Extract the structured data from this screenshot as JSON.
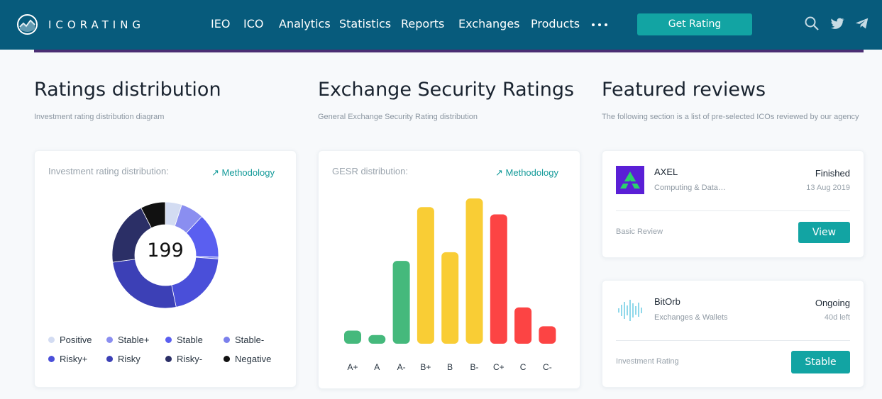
{
  "header": {
    "logo_text": "ICORATING",
    "nav": [
      "IEO",
      "ICO",
      "Analytics",
      "Statistics",
      "Reports",
      "Exchanges",
      "Products"
    ],
    "more_icon": "more-dots-icon",
    "cta_label": "Get Rating",
    "icons": [
      "search-icon",
      "twitter-icon",
      "telegram-icon"
    ],
    "colors": {
      "background": "#075b7c",
      "accent": "#12a4a3"
    }
  },
  "ratings": {
    "title": "Ratings distribution",
    "subtitle": "Investment rating distribution diagram",
    "card_label": "Investment rating distribution:",
    "methodology": "Methodology",
    "total": "199",
    "legend": [
      {
        "label": "Positive",
        "color": "#d3dcf2"
      },
      {
        "label": "Stable+",
        "color": "#8a8ef0"
      },
      {
        "label": "Stable",
        "color": "#5a5ff0"
      },
      {
        "label": "Stable-",
        "color": "#7b80ec"
      },
      {
        "label": "Risky+",
        "color": "#4a4fd9"
      },
      {
        "label": "Risky",
        "color": "#3c40b6"
      },
      {
        "label": "Risky-",
        "color": "#2b2f66"
      },
      {
        "label": "Negative",
        "color": "#111111"
      }
    ]
  },
  "security": {
    "title": "Exchange Security Ratings",
    "subtitle": "General Exchange Security Rating distribution",
    "card_label": "GESR distribution:",
    "methodology": "Methodology"
  },
  "featured": {
    "title": "Featured reviews",
    "subtitle": "The following section is a list of pre-selected ICOs reviewed by our agency",
    "reviews": [
      {
        "name": "AXEL",
        "category": "Computing & Data…",
        "status": "Finished",
        "date": "13 Aug 2019",
        "type": "Basic Review",
        "button": "View",
        "logo_icon": "axel-logo-icon"
      },
      {
        "name": "BitOrb",
        "category": "Exchanges & Wallets",
        "status": "Ongoing",
        "date": "40d left",
        "type": "Investment Rating",
        "button": "Stable",
        "logo_icon": "bitorb-logo-icon"
      }
    ]
  },
  "chart_data": [
    {
      "type": "pie",
      "title": "Investment rating distribution:",
      "center_label": "199",
      "labels": [
        "Positive",
        "Stable+",
        "Stable",
        "Stable-",
        "Risky+",
        "Risky",
        "Risky-",
        "Negative"
      ],
      "values": [
        10,
        14,
        27,
        1,
        41,
        52,
        39,
        15
      ],
      "colors": [
        "#d3dcf2",
        "#8a8ef0",
        "#5a5ff0",
        "#7b80ec",
        "#4a4fd9",
        "#3c40b6",
        "#2b2f66",
        "#111111"
      ]
    },
    {
      "type": "bar",
      "title": "GESR distribution:",
      "categories": [
        "A+",
        "A",
        "A-",
        "B+",
        "B",
        "B-",
        "C+",
        "C",
        "C-"
      ],
      "values": [
        9,
        6,
        57,
        94,
        63,
        100,
        89,
        25,
        12
      ],
      "colors": [
        "#45b97c",
        "#45b97c",
        "#45b97c",
        "#f9cd35",
        "#f9cd35",
        "#f9cd35",
        "#fc4444",
        "#fc4444",
        "#fc4444"
      ],
      "ylim": [
        0,
        100
      ]
    }
  ]
}
